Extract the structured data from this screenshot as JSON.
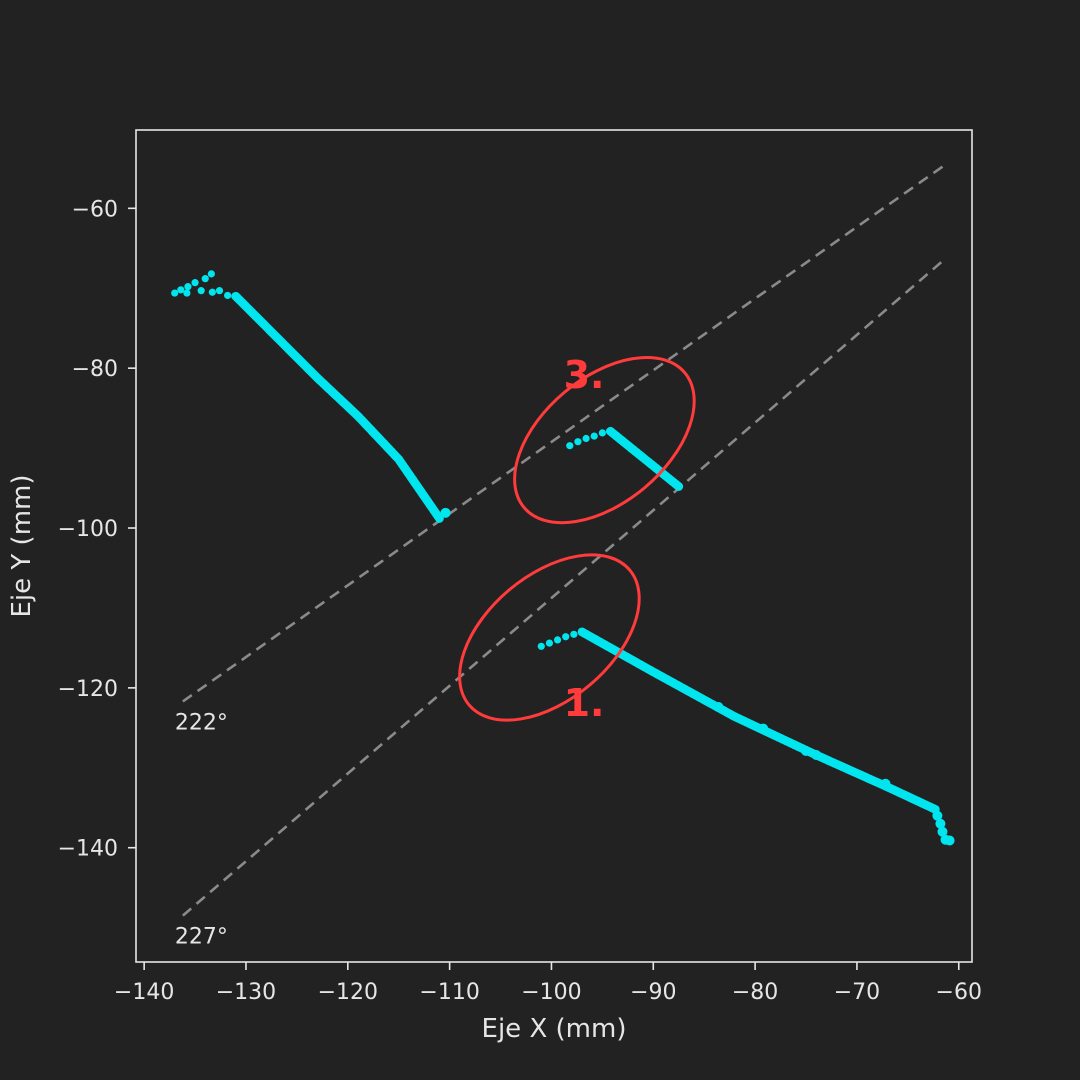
{
  "chart_data": {
    "type": "scatter",
    "title": "",
    "xlabel": "Eje X (mm)",
    "ylabel": "Eje Y (mm)",
    "xlim": [
      -140.8,
      -58.7
    ],
    "ylim": [
      -154.3,
      -50.2
    ],
    "xticks": [
      -140,
      -130,
      -120,
      -110,
      -100,
      -90,
      -80,
      -70,
      -60
    ],
    "yticks": [
      -60,
      -80,
      -100,
      -120,
      -140
    ],
    "tick_format": "unicode-minus",
    "grid": false,
    "legend": "none",
    "colors": {
      "background": "#222222",
      "frame": "#e6e6e6",
      "points": "#00e5ee",
      "guides": "#8a8a8a",
      "annotations": "#ff3b3b"
    },
    "series": [
      {
        "id": "left-branch",
        "tail": [
          [
            -137,
            -70.6
          ],
          [
            -136.4,
            -70.2
          ],
          [
            -135.8,
            -70.6
          ],
          [
            -135.7,
            -69.8
          ],
          [
            -135,
            -69.3
          ],
          [
            -134.4,
            -70.3
          ],
          [
            -134,
            -68.8
          ],
          [
            -133.4,
            -68.2
          ],
          [
            -133.3,
            -70.5
          ],
          [
            -132.6,
            -70.3
          ],
          [
            -131.8,
            -70.9
          ],
          [
            -131.1,
            -71
          ]
        ],
        "curve": [
          [
            -131,
            -71
          ],
          [
            -127,
            -76.1
          ],
          [
            -123,
            -81.2
          ],
          [
            -119,
            -86
          ],
          [
            -115,
            -91.4
          ],
          [
            -111,
            -98.8
          ]
        ],
        "extra": [
          [
            -110.4,
            -98.1
          ]
        ]
      },
      {
        "id": "middle-branch",
        "tail": [
          [
            -98.2,
            -89.7
          ],
          [
            -97.4,
            -89.2
          ],
          [
            -96.6,
            -88.8
          ],
          [
            -95.8,
            -88.5
          ],
          [
            -95,
            -88.1
          ],
          [
            -94.3,
            -87.9
          ]
        ],
        "curve": [
          [
            -94.2,
            -87.9
          ],
          [
            -91,
            -91.2
          ],
          [
            -87.5,
            -94.8
          ]
        ],
        "extra": []
      },
      {
        "id": "lower-branch",
        "tail": [
          [
            -101,
            -114.8
          ],
          [
            -100.2,
            -114.4
          ],
          [
            -99.4,
            -114
          ],
          [
            -98.6,
            -113.6
          ],
          [
            -97.8,
            -113.3
          ],
          [
            -97,
            -113
          ]
        ],
        "curve": [
          [
            -97,
            -113
          ],
          [
            -90,
            -118
          ],
          [
            -82,
            -123.6
          ],
          [
            -74,
            -128.4
          ],
          [
            -67,
            -132.4
          ],
          [
            -62.3,
            -135.2
          ]
        ],
        "extra": [
          [
            -83.6,
            -122.4
          ],
          [
            -79.2,
            -125.1
          ],
          [
            -75,
            -127.9
          ],
          [
            -74,
            -128.4
          ],
          [
            -67.2,
            -132
          ],
          [
            -62.1,
            -136
          ],
          [
            -61.8,
            -137
          ],
          [
            -61.6,
            -138
          ],
          [
            -61.3,
            -139
          ],
          [
            -60.9,
            -139.1
          ]
        ]
      }
    ],
    "reference_lines": [
      {
        "label": "222°",
        "from": [
          -136.2,
          -121.7
        ],
        "to": [
          -61.5,
          -54.7
        ]
      },
      {
        "label": "227°",
        "from": [
          -136.2,
          -148.5
        ],
        "to": [
          -61.5,
          -66.5
        ]
      }
    ],
    "annotations": [
      {
        "label": "3.",
        "center": [
          -94.8,
          -89
        ],
        "rx_data": 10.3,
        "ry_data": 7.8,
        "text_at": [
          -96.8,
          -82.5
        ]
      },
      {
        "label": "1.",
        "center": [
          -100.2,
          -113.7
        ],
        "rx_data": 10.3,
        "ry_data": 7.8,
        "text_at": [
          -96.8,
          -123.5
        ]
      }
    ]
  }
}
